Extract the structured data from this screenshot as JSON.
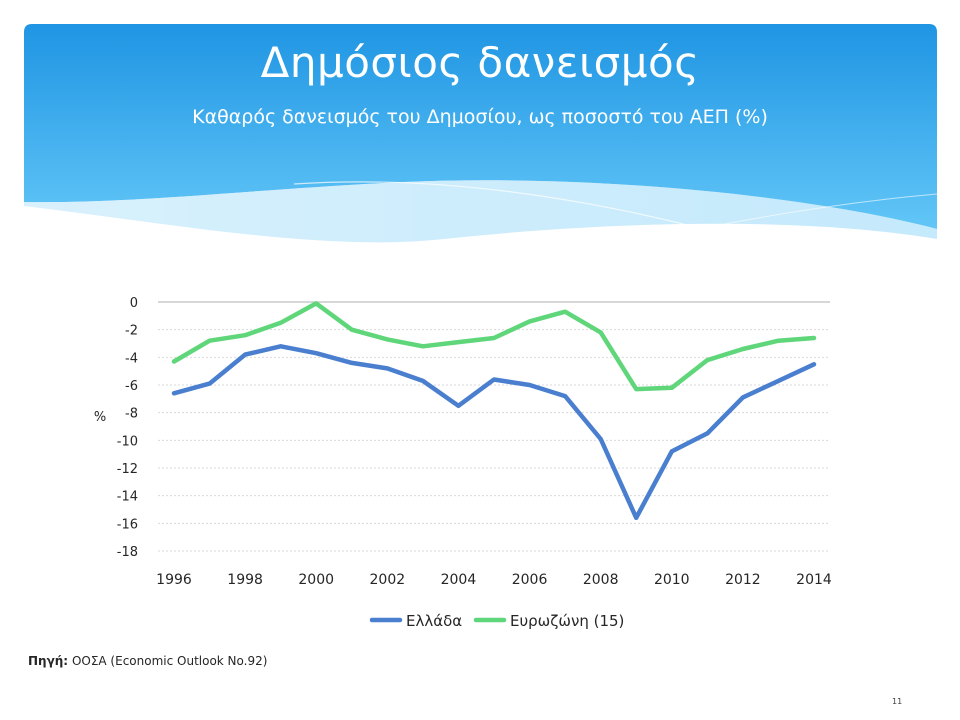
{
  "slide": {
    "title": "Δημόσιος δανεισμός",
    "subtitle": "Καθαρός δανεισμός του Δημοσίου, ως ποσοστό του ΑΕΠ (%)",
    "source_label": "Πηγή:",
    "source_text": "ΟΟΣΑ (Economic Outlook No.92)",
    "page_number": "11"
  },
  "colors": {
    "banner_top": "#2a9ee6",
    "banner_bottom": "#5cc0f5",
    "greece": "#4a7fcf",
    "eurozone": "#5fd67a"
  },
  "chart_data": {
    "type": "line",
    "title": "",
    "xlabel": "",
    "ylabel": "%",
    "x": [
      1996,
      1997,
      1998,
      1999,
      2000,
      2001,
      2002,
      2003,
      2004,
      2005,
      2006,
      2007,
      2008,
      2009,
      2010,
      2011,
      2012,
      2013,
      2014
    ],
    "x_tick_labels": [
      "1996",
      "1998",
      "2000",
      "2002",
      "2004",
      "2006",
      "2008",
      "2010",
      "2012",
      "2014"
    ],
    "y_tick_labels": [
      "0",
      "-2",
      "-4",
      "-6",
      "-8",
      "-10",
      "-12",
      "-14",
      "-16",
      "-18"
    ],
    "ylim": [
      -18,
      0
    ],
    "grid": true,
    "legend_position": "bottom",
    "series": [
      {
        "name": "Ελλάδα",
        "color": "#4a7fcf",
        "values": [
          -6.6,
          -5.9,
          -3.8,
          -3.2,
          -3.7,
          -4.4,
          -4.8,
          -5.7,
          -7.5,
          -5.6,
          -6.0,
          -6.8,
          -9.9,
          -15.6,
          -10.8,
          -9.5,
          -6.9,
          -5.7,
          -4.5
        ]
      },
      {
        "name": "Ευρωζώνη (15)",
        "color": "#5fd67a",
        "values": [
          -4.3,
          -2.8,
          -2.4,
          -1.5,
          -0.1,
          -2.0,
          -2.7,
          -3.2,
          -2.9,
          -2.6,
          -1.4,
          -0.7,
          -2.2,
          -6.3,
          -6.2,
          -4.2,
          -3.4,
          -2.8,
          -2.6
        ]
      }
    ]
  }
}
